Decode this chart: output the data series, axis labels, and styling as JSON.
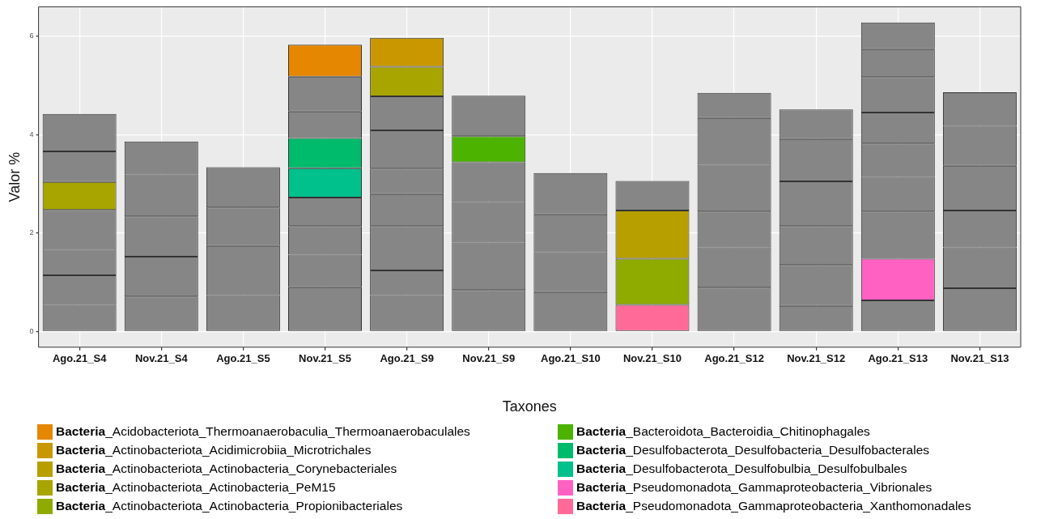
{
  "chart_data": {
    "type": "bar",
    "stacked": true,
    "xlabel": "Taxones",
    "ylabel": "Valor %",
    "categories": [
      "Ago.21_S4",
      "Nov.21_S4",
      "Ago.21_S5",
      "Nov.21_S5",
      "Ago.21_S9",
      "Nov.21_S9",
      "Ago.21_S10",
      "Nov.21_S10",
      "Ago.21_S12",
      "Nov.21_S12",
      "Ago.21_S13",
      "Nov.21_S13"
    ],
    "ylim": [
      -0.32,
      6.6
    ],
    "yticks": [
      0,
      2,
      4,
      6
    ],
    "grid": true,
    "legend": "bottom",
    "series": [
      {
        "color": "#868686",
        "values": [
          0.54,
          0.71,
          0.74,
          0.9,
          0.74,
          0.84,
          0.8,
          null,
          0.89,
          0.52,
          0.63,
          0.88
        ]
      },
      {
        "name": "Bacteria_Pseudomonadota_Gammaproteobacteria_Xanthomonadales",
        "color": "#ff6a98",
        "values": [
          null,
          null,
          null,
          null,
          null,
          null,
          null,
          0.54,
          null,
          null,
          null,
          null
        ]
      },
      {
        "name": "Bacteria_Pseudomonadota_Gammaproteobacteria_Vibrionales",
        "color": "#ff61c3",
        "values": [
          null,
          null,
          null,
          null,
          null,
          null,
          null,
          null,
          null,
          null,
          0.85,
          null
        ]
      },
      {
        "color": "#868686",
        "values": [
          0.6,
          0.81,
          1.0,
          0.66,
          0.5,
          0.97,
          0.81,
          null,
          0.82,
          0.83,
          0.96,
          0.83
        ]
      },
      {
        "color": "#868686",
        "values": [
          0.52,
          0.82,
          0.78,
          0.58,
          0.9,
          0.82,
          0.77,
          null,
          0.73,
          0.79,
          0.7,
          0.75
        ]
      },
      {
        "color": "#868686",
        "values": [
          0.81,
          0.85,
          0.82,
          0.58,
          0.65,
          0.81,
          0.84,
          null,
          0.95,
          0.91,
          0.68,
          0.91
        ]
      },
      {
        "name": "Bacteria_Desulfobacterota_Desulfobulbia_Desulfobulbales",
        "color": "#00c08b",
        "values": [
          null,
          null,
          null,
          0.6,
          null,
          null,
          null,
          null,
          null,
          null,
          null,
          null
        ]
      },
      {
        "name": "Bacteria_Desulfobacterota_Desulfobacteria_Desulfobacterales",
        "color": "#00bb6b",
        "values": [
          null,
          null,
          null,
          0.61,
          null,
          null,
          null,
          null,
          null,
          null,
          null,
          null
        ]
      },
      {
        "name": "Bacteria_Bacteroidota_Bacteroidia_Chitinophagales",
        "color": "#4cb400",
        "values": [
          null,
          null,
          null,
          null,
          null,
          0.53,
          null,
          null,
          null,
          null,
          null,
          null
        ]
      },
      {
        "color": "#868686",
        "values": [
          null,
          0.67,
          null,
          0.54,
          0.52,
          0.82,
          null,
          null,
          0.95,
          0.86,
          0.63,
          0.81
        ]
      },
      {
        "color": "#868686",
        "values": [
          null,
          null,
          null,
          0.71,
          0.78,
          null,
          null,
          null,
          0.51,
          0.6,
          0.72,
          0.68
        ]
      },
      {
        "color": "#868686",
        "values": [
          null,
          null,
          null,
          null,
          0.69,
          null,
          null,
          null,
          null,
          null,
          0.57,
          null
        ]
      },
      {
        "name": "Bacteria_Actinobacteriota_Actinobacteria_Propionibacteriales",
        "color": "#8fab00",
        "values": [
          null,
          null,
          null,
          null,
          null,
          null,
          null,
          0.94,
          null,
          null,
          null,
          null
        ]
      },
      {
        "name": "Bacteria_Actinobacteriota_Actinobacteria_PeM15",
        "color": "#a8a400",
        "values": [
          0.57,
          null,
          null,
          null,
          0.6,
          null,
          null,
          null,
          null,
          null,
          null,
          null
        ]
      },
      {
        "name": "Bacteria_Actinobacteriota_Actinobacteria_Corynebacteriales",
        "color": "#b89f00",
        "values": [
          null,
          null,
          null,
          null,
          null,
          null,
          null,
          0.98,
          null,
          null,
          null,
          null
        ]
      },
      {
        "name": "Bacteria_Actinobacteriota_Acidimicrobiia_Microtrichales",
        "color": "#c99800",
        "values": [
          null,
          null,
          null,
          null,
          0.59,
          null,
          null,
          null,
          null,
          null,
          null,
          null
        ]
      },
      {
        "name": "Bacteria_Acidobacteriota_Thermoanaerobaculia_Thermoanaerobaculales",
        "color": "#e58700",
        "values": [
          null,
          null,
          null,
          0.65,
          null,
          null,
          null,
          null,
          null,
          null,
          null,
          null
        ]
      },
      {
        "color": "#868686",
        "values": [
          0.62,
          null,
          null,
          null,
          null,
          null,
          null,
          0.6,
          null,
          null,
          0.54,
          null
        ]
      },
      {
        "color": "#868686",
        "values": [
          0.76,
          null,
          null,
          null,
          null,
          null,
          null,
          null,
          null,
          null,
          null,
          null
        ]
      }
    ]
  }
}
